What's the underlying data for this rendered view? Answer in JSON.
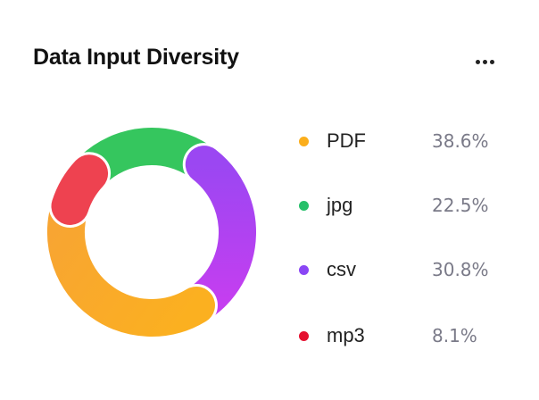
{
  "card": {
    "title": "Data Input Diversity",
    "menu_icon": "more-horizontal-icon"
  },
  "chart_data": {
    "type": "pie",
    "style": "donut",
    "title": "Data Input Diversity",
    "legend_position": "right",
    "categories": [
      "PDF",
      "jpg",
      "csv",
      "mp3"
    ],
    "values": [
      38.6,
      22.5,
      30.8,
      8.1
    ],
    "value_labels": [
      "38.6%",
      "22.5%",
      "30.8%",
      "8.1%"
    ],
    "unit": "%",
    "colors": [
      "#fbae1c",
      "#27c06a",
      "#8a46f5",
      "#e5102f"
    ],
    "ring_colors": [
      "#fbb020",
      "#35c65e",
      "#9b47f2",
      "#ee4250"
    ],
    "gradient_end_colors": [
      "#f8a532",
      "#35c65e",
      "#c53ef0",
      "#ee4250"
    ]
  }
}
